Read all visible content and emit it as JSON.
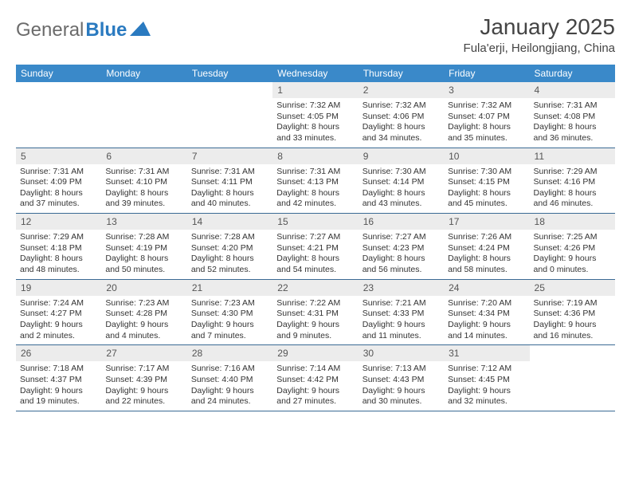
{
  "logo": {
    "text_a": "General",
    "text_b": "Blue"
  },
  "title": "January 2025",
  "location": "Fula'erji, Heilongjiang, China",
  "colors": {
    "header_bg": "#3a89c9",
    "header_text": "#ffffff",
    "daynum_bg": "#ececec",
    "rule": "#3a6a94",
    "title_color": "#444444",
    "body_text": "#333333"
  },
  "day_headers": [
    "Sunday",
    "Monday",
    "Tuesday",
    "Wednesday",
    "Thursday",
    "Friday",
    "Saturday"
  ],
  "weeks": [
    [
      {
        "n": "",
        "sr": "",
        "ss": "",
        "dl": ""
      },
      {
        "n": "",
        "sr": "",
        "ss": "",
        "dl": ""
      },
      {
        "n": "",
        "sr": "",
        "ss": "",
        "dl": ""
      },
      {
        "n": "1",
        "sr": "7:32 AM",
        "ss": "4:05 PM",
        "dl": "8 hours and 33 minutes."
      },
      {
        "n": "2",
        "sr": "7:32 AM",
        "ss": "4:06 PM",
        "dl": "8 hours and 34 minutes."
      },
      {
        "n": "3",
        "sr": "7:32 AM",
        "ss": "4:07 PM",
        "dl": "8 hours and 35 minutes."
      },
      {
        "n": "4",
        "sr": "7:31 AM",
        "ss": "4:08 PM",
        "dl": "8 hours and 36 minutes."
      }
    ],
    [
      {
        "n": "5",
        "sr": "7:31 AM",
        "ss": "4:09 PM",
        "dl": "8 hours and 37 minutes."
      },
      {
        "n": "6",
        "sr": "7:31 AM",
        "ss": "4:10 PM",
        "dl": "8 hours and 39 minutes."
      },
      {
        "n": "7",
        "sr": "7:31 AM",
        "ss": "4:11 PM",
        "dl": "8 hours and 40 minutes."
      },
      {
        "n": "8",
        "sr": "7:31 AM",
        "ss": "4:13 PM",
        "dl": "8 hours and 42 minutes."
      },
      {
        "n": "9",
        "sr": "7:30 AM",
        "ss": "4:14 PM",
        "dl": "8 hours and 43 minutes."
      },
      {
        "n": "10",
        "sr": "7:30 AM",
        "ss": "4:15 PM",
        "dl": "8 hours and 45 minutes."
      },
      {
        "n": "11",
        "sr": "7:29 AM",
        "ss": "4:16 PM",
        "dl": "8 hours and 46 minutes."
      }
    ],
    [
      {
        "n": "12",
        "sr": "7:29 AM",
        "ss": "4:18 PM",
        "dl": "8 hours and 48 minutes."
      },
      {
        "n": "13",
        "sr": "7:28 AM",
        "ss": "4:19 PM",
        "dl": "8 hours and 50 minutes."
      },
      {
        "n": "14",
        "sr": "7:28 AM",
        "ss": "4:20 PM",
        "dl": "8 hours and 52 minutes."
      },
      {
        "n": "15",
        "sr": "7:27 AM",
        "ss": "4:21 PM",
        "dl": "8 hours and 54 minutes."
      },
      {
        "n": "16",
        "sr": "7:27 AM",
        "ss": "4:23 PM",
        "dl": "8 hours and 56 minutes."
      },
      {
        "n": "17",
        "sr": "7:26 AM",
        "ss": "4:24 PM",
        "dl": "8 hours and 58 minutes."
      },
      {
        "n": "18",
        "sr": "7:25 AM",
        "ss": "4:26 PM",
        "dl": "9 hours and 0 minutes."
      }
    ],
    [
      {
        "n": "19",
        "sr": "7:24 AM",
        "ss": "4:27 PM",
        "dl": "9 hours and 2 minutes."
      },
      {
        "n": "20",
        "sr": "7:23 AM",
        "ss": "4:28 PM",
        "dl": "9 hours and 4 minutes."
      },
      {
        "n": "21",
        "sr": "7:23 AM",
        "ss": "4:30 PM",
        "dl": "9 hours and 7 minutes."
      },
      {
        "n": "22",
        "sr": "7:22 AM",
        "ss": "4:31 PM",
        "dl": "9 hours and 9 minutes."
      },
      {
        "n": "23",
        "sr": "7:21 AM",
        "ss": "4:33 PM",
        "dl": "9 hours and 11 minutes."
      },
      {
        "n": "24",
        "sr": "7:20 AM",
        "ss": "4:34 PM",
        "dl": "9 hours and 14 minutes."
      },
      {
        "n": "25",
        "sr": "7:19 AM",
        "ss": "4:36 PM",
        "dl": "9 hours and 16 minutes."
      }
    ],
    [
      {
        "n": "26",
        "sr": "7:18 AM",
        "ss": "4:37 PM",
        "dl": "9 hours and 19 minutes."
      },
      {
        "n": "27",
        "sr": "7:17 AM",
        "ss": "4:39 PM",
        "dl": "9 hours and 22 minutes."
      },
      {
        "n": "28",
        "sr": "7:16 AM",
        "ss": "4:40 PM",
        "dl": "9 hours and 24 minutes."
      },
      {
        "n": "29",
        "sr": "7:14 AM",
        "ss": "4:42 PM",
        "dl": "9 hours and 27 minutes."
      },
      {
        "n": "30",
        "sr": "7:13 AM",
        "ss": "4:43 PM",
        "dl": "9 hours and 30 minutes."
      },
      {
        "n": "31",
        "sr": "7:12 AM",
        "ss": "4:45 PM",
        "dl": "9 hours and 32 minutes."
      },
      {
        "n": "",
        "sr": "",
        "ss": "",
        "dl": ""
      }
    ]
  ],
  "labels": {
    "sunrise": "Sunrise:",
    "sunset": "Sunset:",
    "daylight": "Daylight:"
  }
}
